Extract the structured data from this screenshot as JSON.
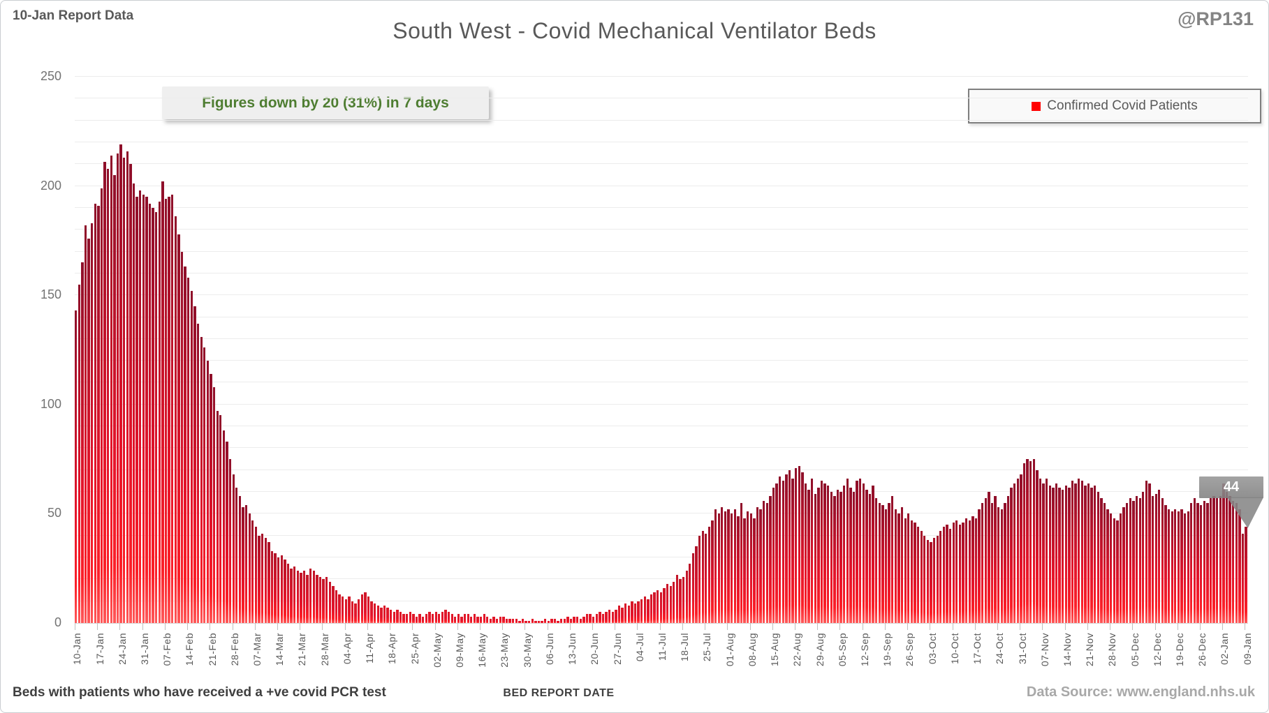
{
  "header": {
    "report_label": "10-Jan Report Data",
    "title": "South West - Covid Mechanical Ventilator Beds",
    "handle": "@RP131"
  },
  "annotation": {
    "text": "Figures down by 20 (31%) in 7 days"
  },
  "legend": {
    "label": "Confirmed Covid Patients",
    "marker_color": "#ff0000"
  },
  "callout": {
    "value": "44"
  },
  "footer": {
    "left": "Beds with patients who have received a +ve covid PCR test",
    "xlabel": "BED REPORT DATE",
    "source": "Data Source: www.england.nhs.uk"
  },
  "colors": {
    "title_text": "#595959",
    "annotation_green": "#4e7d31",
    "bar_bottom_bright": "#e51a28",
    "bar_top_dark": "#8e0f2a",
    "legend_marker": "#ff0000",
    "gridline": "#ececec",
    "axis_line": "#d6d6d6",
    "callout_gray": "#868686"
  },
  "chart_data": {
    "type": "bar",
    "title": "South West - Covid Mechanical Ventilator Beds",
    "xlabel": "BED REPORT DATE",
    "ylabel": "",
    "ylim": [
      0,
      250
    ],
    "yticks": [
      0,
      50,
      100,
      150,
      200,
      250
    ],
    "gridline_step": 10,
    "grid": true,
    "legend_position": "top-right",
    "x_tick_interval_days": 7,
    "categories_weekly": [
      "10-Jan",
      "17-Jan",
      "24-Jan",
      "31-Jan",
      "07-Feb",
      "14-Feb",
      "21-Feb",
      "28-Feb",
      "07-Mar",
      "14-Mar",
      "21-Mar",
      "28-Mar",
      "04-Apr",
      "11-Apr",
      "18-Apr",
      "25-Apr",
      "02-May",
      "09-May",
      "16-May",
      "23-May",
      "30-May",
      "06-Jun",
      "13-Jun",
      "20-Jun",
      "27-Jun",
      "04-Jul",
      "11-Jul",
      "18-Jul",
      "25-Jul",
      "01-Aug",
      "08-Aug",
      "15-Aug",
      "22-Aug",
      "29-Aug",
      "05-Sep",
      "12-Sep",
      "19-Sep",
      "26-Sep",
      "03-Oct",
      "10-Oct",
      "17-Oct",
      "24-Oct",
      "31-Oct",
      "07-Nov",
      "14-Nov",
      "21-Nov",
      "28-Nov",
      "05-Dec",
      "12-Dec",
      "19-Dec",
      "26-Dec",
      "02-Jan",
      "09-Jan"
    ],
    "last_point_label": 44,
    "series": [
      {
        "name": "Confirmed Covid Patients",
        "values": [
          143,
          155,
          165,
          182,
          176,
          183,
          192,
          191,
          199,
          211,
          208,
          214,
          205,
          215,
          219,
          213,
          216,
          210,
          201,
          195,
          198,
          196,
          195,
          192,
          190,
          188,
          193,
          202,
          194,
          195,
          196,
          186,
          178,
          170,
          163,
          158,
          152,
          145,
          137,
          131,
          126,
          120,
          114,
          108,
          97,
          95,
          88,
          83,
          75,
          68,
          62,
          58,
          53,
          54,
          50,
          47,
          44,
          40,
          41,
          39,
          37,
          33,
          32,
          30,
          31,
          29,
          27,
          25,
          26,
          24,
          23,
          24,
          22,
          25,
          24,
          22,
          21,
          20,
          21,
          19,
          17,
          15,
          13,
          12,
          11,
          12,
          10,
          9,
          11,
          13,
          14,
          12,
          10,
          9,
          8,
          7,
          8,
          7,
          6,
          5,
          6,
          5,
          4,
          4,
          5,
          4,
          3,
          4,
          3,
          4,
          5,
          4,
          5,
          4,
          5,
          6,
          5,
          4,
          3,
          4,
          3,
          4,
          4,
          3,
          4,
          3,
          3,
          4,
          3,
          2,
          3,
          2,
          3,
          3,
          2,
          2,
          2,
          2,
          1,
          2,
          1,
          1,
          2,
          1,
          1,
          1,
          2,
          1,
          2,
          2,
          1,
          2,
          2,
          3,
          2,
          3,
          3,
          2,
          3,
          4,
          4,
          3,
          4,
          5,
          4,
          5,
          6,
          5,
          6,
          8,
          7,
          9,
          8,
          10,
          9,
          10,
          11,
          12,
          11,
          13,
          14,
          15,
          14,
          16,
          18,
          17,
          19,
          22,
          20,
          21,
          24,
          27,
          32,
          35,
          40,
          42,
          41,
          44,
          47,
          52,
          50,
          53,
          51,
          52,
          50,
          52,
          49,
          55,
          48,
          51,
          50,
          48,
          53,
          52,
          56,
          55,
          58,
          62,
          64,
          67,
          65,
          68,
          70,
          66,
          71,
          72,
          69,
          64,
          61,
          66,
          59,
          62,
          65,
          64,
          63,
          60,
          58,
          61,
          60,
          63,
          66,
          62,
          60,
          65,
          66,
          64,
          61,
          59,
          63,
          57,
          55,
          54,
          52,
          55,
          58,
          52,
          50,
          53,
          48,
          50,
          47,
          46,
          44,
          42,
          40,
          38,
          37,
          39,
          40,
          42,
          44,
          45,
          43,
          46,
          47,
          45,
          46,
          48,
          47,
          49,
          48,
          52,
          55,
          57,
          60,
          55,
          58,
          53,
          52,
          55,
          58,
          62,
          64,
          66,
          68,
          73,
          75,
          74,
          75,
          70,
          66,
          64,
          66,
          63,
          62,
          64,
          62,
          61,
          63,
          62,
          65,
          64,
          66,
          65,
          63,
          64,
          62,
          63,
          60,
          57,
          55,
          52,
          50,
          48,
          47,
          50,
          53,
          55,
          57,
          56,
          58,
          57,
          60,
          65,
          64,
          58,
          59,
          61,
          57,
          54,
          52,
          51,
          52,
          51,
          52,
          50,
          51,
          55,
          57,
          55,
          54,
          56,
          55,
          57,
          58,
          57,
          58,
          64,
          60,
          58,
          56,
          55,
          52,
          41,
          44
        ]
      }
    ]
  }
}
